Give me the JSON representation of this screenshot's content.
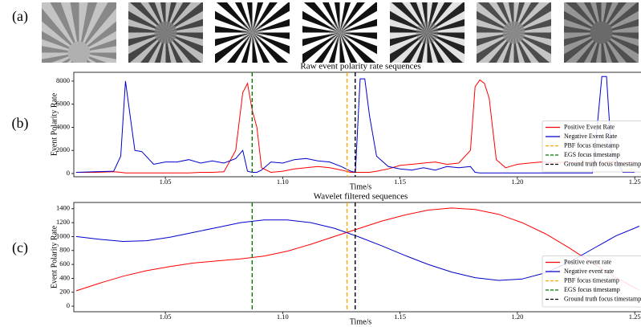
{
  "panel_labels": [
    "(a)",
    "(b)",
    "(c)"
  ],
  "chart_data": [
    {
      "type": "line",
      "title": "Raw event polarity rate sequences",
      "xlabel": "Time/s",
      "ylabel": "Event Polarity Rate",
      "xlim": [
        1.011,
        1.252
      ],
      "ylim": [
        -280,
        8760
      ],
      "xticks": [
        1.05,
        {
          "value": 1.1,
          "label": "1.10"
        },
        1.15,
        {
          "value": 1.2,
          "label": "1.20"
        },
        1.25
      ],
      "yticks": [
        0,
        2000,
        4000,
        6000,
        8000
      ],
      "legend": "lower right",
      "x": [
        1.012,
        1.02,
        1.028,
        1.031,
        1.033,
        1.035,
        1.037,
        1.04,
        1.045,
        1.05,
        1.055,
        1.06,
        1.065,
        1.07,
        1.075,
        1.08,
        1.083,
        1.085,
        1.087,
        1.089,
        1.091,
        1.095,
        1.1,
        1.105,
        1.11,
        1.115,
        1.12,
        1.125,
        1.129,
        1.131,
        1.133,
        1.135,
        1.137,
        1.14,
        1.145,
        1.15,
        1.155,
        1.16,
        1.165,
        1.17,
        1.175,
        1.18,
        1.182,
        1.184,
        1.186,
        1.188,
        1.191,
        1.195,
        1.2,
        1.205,
        1.21,
        1.215,
        1.22,
        1.225,
        1.23,
        1.232,
        1.234,
        1.236,
        1.238,
        1.24,
        1.245,
        1.25
      ],
      "series": [
        {
          "name": "Positive Event Rate",
          "color": "#ff0000",
          "values": [
            100,
            100,
            150,
            100,
            50,
            50,
            50,
            50,
            50,
            50,
            50,
            50,
            100,
            100,
            150,
            2000,
            7000,
            7800,
            5500,
            4000,
            500,
            100,
            200,
            400,
            500,
            600,
            500,
            300,
            100,
            100,
            100,
            100,
            100,
            200,
            400,
            700,
            800,
            900,
            1000,
            800,
            900,
            2000,
            7500,
            8100,
            7800,
            6500,
            1200,
            500,
            800,
            900,
            1000,
            900,
            1000,
            900,
            1000,
            1000,
            900,
            900,
            1000,
            1000,
            900,
            1000
          ]
        },
        {
          "name": "Negative Event Rate",
          "color": "#0000cc",
          "values": [
            100,
            150,
            200,
            1500,
            8000,
            5000,
            2000,
            1900,
            800,
            1000,
            1000,
            1200,
            900,
            1100,
            900,
            1300,
            2000,
            200,
            100,
            100,
            300,
            1000,
            900,
            1200,
            1300,
            1100,
            1000,
            600,
            200,
            100,
            8200,
            8200,
            5000,
            1500,
            600,
            400,
            300,
            500,
            300,
            600,
            500,
            600,
            100,
            50,
            50,
            50,
            50,
            50,
            50,
            50,
            50,
            50,
            50,
            50,
            50,
            50,
            4000,
            8400,
            8400,
            2000,
            100,
            100
          ]
        }
      ],
      "markers": [
        {
          "name": "PBF focus timestamp",
          "color": "#ffa500",
          "x": 1.1274
        },
        {
          "name": "EGS focus timestamp",
          "color": "#007700",
          "x": 1.087
        },
        {
          "name": "Ground truth focus timestamp",
          "color": "#000000",
          "x": 1.1309
        }
      ]
    },
    {
      "type": "line",
      "title": "Wavelet filtered sequences",
      "xlabel": "Time/s",
      "ylabel": "Event Polarity Rate",
      "xlim": [
        1.011,
        1.252
      ],
      "ylim": [
        -80,
        1490
      ],
      "xticks": [
        1.05,
        {
          "value": 1.1,
          "label": "1.10"
        },
        1.15,
        {
          "value": 1.2,
          "label": "1.20"
        },
        1.25
      ],
      "yticks": [
        0,
        200,
        400,
        600,
        800,
        1000,
        1200,
        1400
      ],
      "legend": "lower right",
      "x": [
        1.012,
        1.022,
        1.032,
        1.042,
        1.052,
        1.062,
        1.072,
        1.082,
        1.092,
        1.102,
        1.112,
        1.122,
        1.132,
        1.142,
        1.152,
        1.162,
        1.172,
        1.182,
        1.192,
        1.202,
        1.212,
        1.222,
        1.232,
        1.242,
        1.252
      ],
      "series": [
        {
          "name": "Positive event rate",
          "color": "#ff0000",
          "values": [
            220,
            330,
            430,
            510,
            570,
            620,
            650,
            680,
            720,
            790,
            890,
            1000,
            1110,
            1220,
            1310,
            1380,
            1410,
            1390,
            1320,
            1200,
            1040,
            840,
            620,
            410,
            230
          ]
        },
        {
          "name": "Negative event rate",
          "color": "#0000cc",
          "values": [
            1000,
            960,
            930,
            940,
            990,
            1060,
            1130,
            1200,
            1240,
            1240,
            1200,
            1120,
            1000,
            870,
            730,
            600,
            490,
            410,
            370,
            390,
            480,
            630,
            820,
            1010,
            1150
          ]
        }
      ],
      "markers": [
        {
          "name": "PBF focus timestamp",
          "color": "#ffa500",
          "x": 1.1274
        },
        {
          "name": "EGS focus timestamp",
          "color": "#007700",
          "x": 1.087
        },
        {
          "name": "Ground truth focus timestamp",
          "color": "#000000",
          "x": 1.1309
        }
      ]
    }
  ]
}
